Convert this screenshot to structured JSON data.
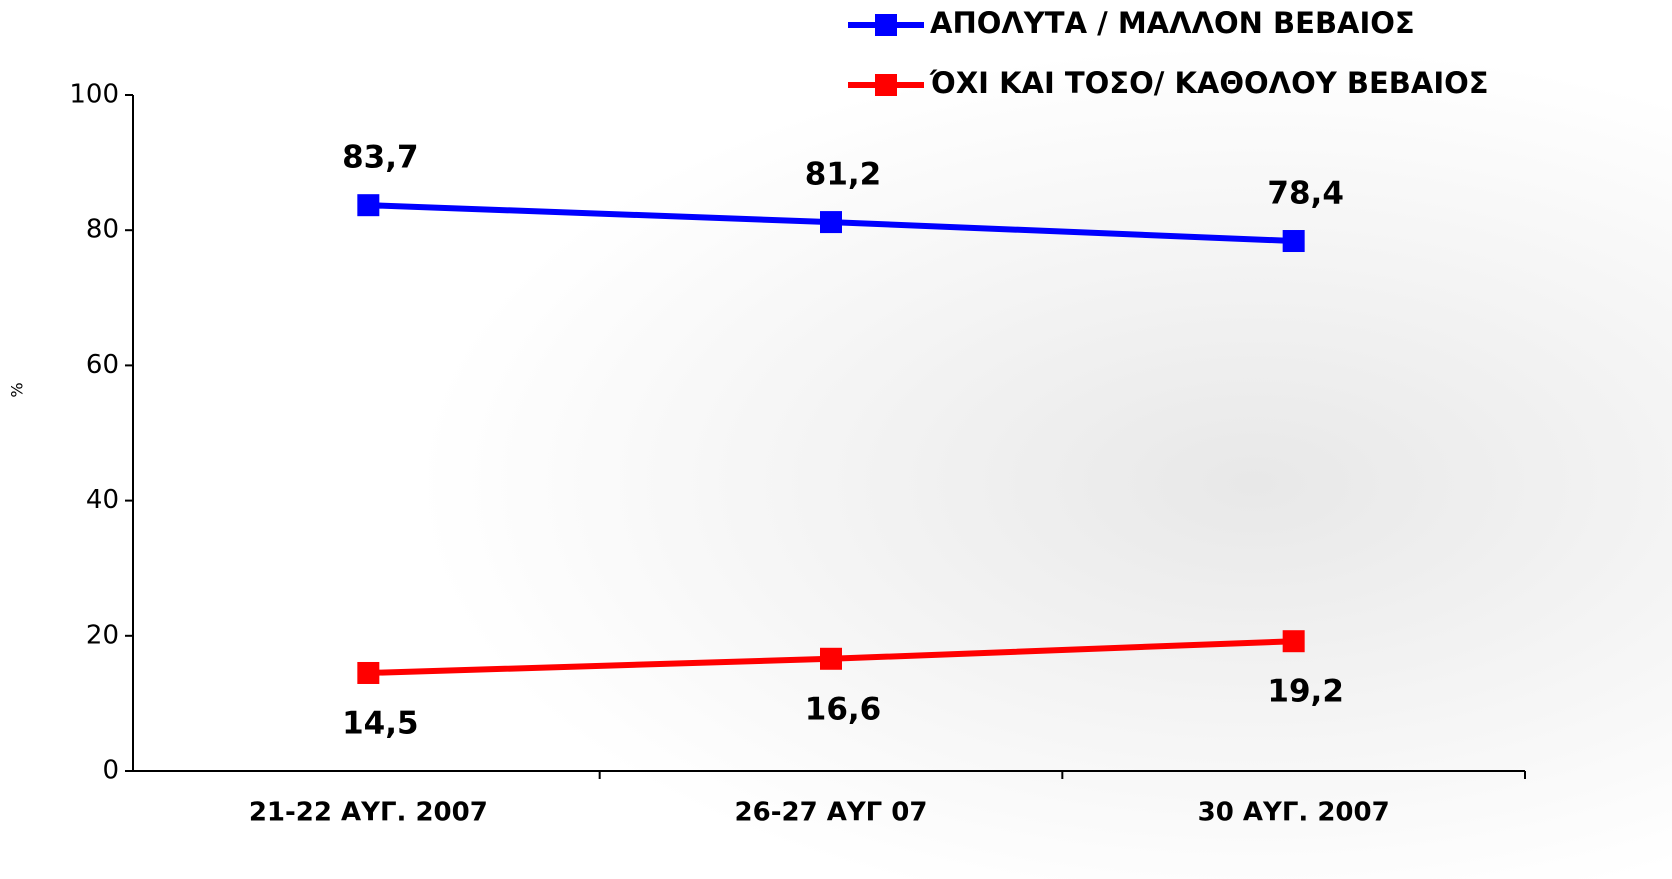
{
  "chart_data": {
    "type": "line",
    "y_label": "%",
    "categories": [
      "21-22 ΑΥΓ. 2007",
      "26-27 ΑΥΓ 07",
      "30 ΑΥΓ. 2007"
    ],
    "series": [
      {
        "name": "ΑΠΟΛΥΤΑ / ΜΑΛΛΟΝ ΒΕΒΑΙΟΣ",
        "color": "#0000ff",
        "values": [
          83.7,
          81.2,
          78.4
        ],
        "value_labels": [
          "83,7",
          "81,2",
          "78,4"
        ]
      },
      {
        "name": "ΌΧΙ ΚΑΙ ΤΟΣΟ/ ΚΑΘΟΛΟΥ ΒΕΒΑΙΟΣ",
        "color": "#ff0000",
        "values": [
          14.5,
          16.6,
          19.2
        ],
        "value_labels": [
          "14,5",
          "16,6",
          "19,2"
        ]
      }
    ],
    "ylim": [
      0,
      100
    ],
    "yticks": [
      0,
      20,
      40,
      60,
      80,
      100
    ],
    "grid": false
  }
}
